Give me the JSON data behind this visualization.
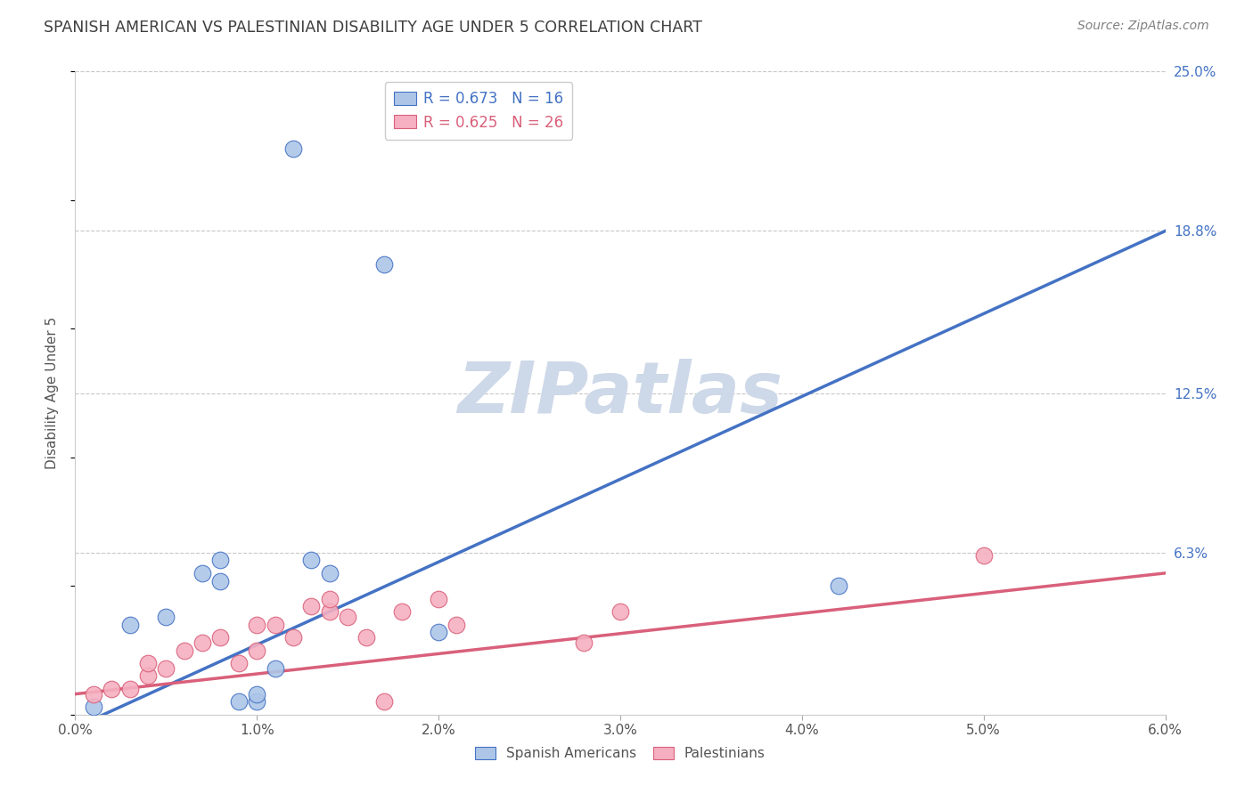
{
  "title": "SPANISH AMERICAN VS PALESTINIAN DISABILITY AGE UNDER 5 CORRELATION CHART",
  "source": "Source: ZipAtlas.com",
  "ylabel": "Disability Age Under 5",
  "xlim": [
    0.0,
    0.06
  ],
  "ylim": [
    0.0,
    0.25
  ],
  "xtick_labels": [
    "0.0%",
    "1.0%",
    "2.0%",
    "3.0%",
    "4.0%",
    "5.0%",
    "6.0%"
  ],
  "ytick_labels_right": [
    "6.3%",
    "12.5%",
    "18.8%",
    "25.0%"
  ],
  "ytick_vals_right": [
    0.063,
    0.125,
    0.188,
    0.25
  ],
  "xtick_vals": [
    0.0,
    0.01,
    0.02,
    0.03,
    0.04,
    0.05,
    0.06
  ],
  "blue_label": "Spanish Americans",
  "pink_label": "Palestinians",
  "blue_R": "0.673",
  "blue_N": "16",
  "pink_R": "0.625",
  "pink_N": "26",
  "blue_color": "#adc6e8",
  "pink_color": "#f5afc0",
  "blue_line_color": "#4472c4",
  "pink_line_color": "#d9607a",
  "title_color": "#3f3f3f",
  "source_color": "#808080",
  "background_color": "#ffffff",
  "watermark_text": "ZIPatlas",
  "watermark_color": "#cdd8e8",
  "grid_color": "#c8c8c8",
  "blue_scatter_x": [
    0.001,
    0.003,
    0.005,
    0.007,
    0.008,
    0.008,
    0.009,
    0.01,
    0.01,
    0.011,
    0.012,
    0.013,
    0.014,
    0.017,
    0.02,
    0.042
  ],
  "blue_scatter_y": [
    0.003,
    0.035,
    0.038,
    0.055,
    0.052,
    0.06,
    0.005,
    0.005,
    0.008,
    0.018,
    0.22,
    0.06,
    0.055,
    0.175,
    0.032,
    0.05
  ],
  "pink_scatter_x": [
    0.001,
    0.002,
    0.003,
    0.004,
    0.004,
    0.005,
    0.006,
    0.007,
    0.008,
    0.009,
    0.01,
    0.01,
    0.011,
    0.012,
    0.013,
    0.014,
    0.014,
    0.015,
    0.016,
    0.017,
    0.018,
    0.02,
    0.021,
    0.028,
    0.03,
    0.05
  ],
  "pink_scatter_y": [
    0.008,
    0.01,
    0.01,
    0.015,
    0.02,
    0.018,
    0.025,
    0.028,
    0.03,
    0.02,
    0.035,
    0.025,
    0.035,
    0.03,
    0.042,
    0.04,
    0.045,
    0.038,
    0.03,
    0.005,
    0.04,
    0.045,
    0.035,
    0.028,
    0.04,
    0.062
  ],
  "blue_line_x": [
    0.0,
    0.06
  ],
  "blue_line_y": [
    -0.005,
    0.188
  ],
  "pink_line_x": [
    0.0,
    0.06
  ],
  "pink_line_y": [
    0.008,
    0.055
  ]
}
